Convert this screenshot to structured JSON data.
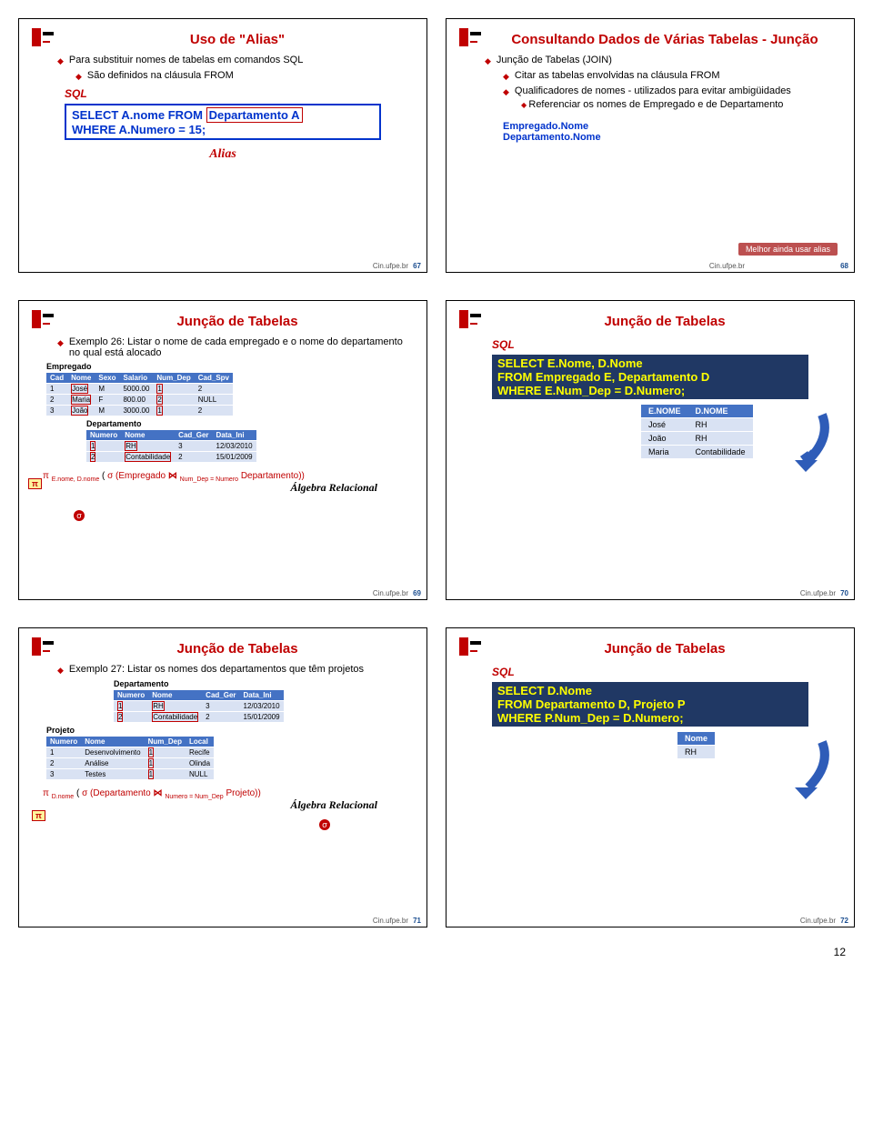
{
  "page_number": "12",
  "brand": "Cin.ufpe.br",
  "slides": {
    "s1": {
      "num": "67",
      "title": "Uso de \"Alias\"",
      "b1": "Para substituir nomes de tabelas em comandos SQL",
      "b2": "São definidos na cláusula FROM",
      "sql_label": "SQL",
      "code_l1_a": "SELECT A.nome FROM ",
      "code_l1_b": "Departamento A",
      "code_l2": "WHERE A.Numero = 15;",
      "alias_label": "Alias"
    },
    "s2": {
      "num": "68",
      "title": "Consultando Dados de Várias Tabelas - Junção",
      "b1": "Junção  de Tabelas (JOIN)",
      "b2": "Citar as tabelas envolvidas na cláusula FROM",
      "b3": "Qualificadores de nomes - utilizados para evitar ambigüidades",
      "b4": "Referenciar os nomes de Empregado e de Departamento",
      "eg1": "Empregado.Nome",
      "eg2": "Departamento.Nome",
      "note": "Melhor ainda usar alias"
    },
    "s3": {
      "num": "69",
      "title": "Junção  de Tabelas",
      "desc": "Exemplo 26: Listar o nome de cada empregado e o nome do departamento no qual está alocado",
      "emp_title": "Empregado",
      "emp_cols": [
        "Cad",
        "Nome",
        "Sexo",
        "Salario",
        "Num_Dep",
        "Cad_Spv"
      ],
      "emp_rows": [
        [
          "1",
          "José",
          "M",
          "5000.00",
          "1",
          "2"
        ],
        [
          "2",
          "Maria",
          "F",
          "800.00",
          "2",
          "NULL"
        ],
        [
          "3",
          "João",
          "M",
          "3000.00",
          "1",
          "2"
        ]
      ],
      "dep_title": "Departamento",
      "dep_cols": [
        "Numero",
        "Nome",
        "Cad_Ger",
        "Data_Ini"
      ],
      "dep_rows": [
        [
          "1",
          "RH",
          "3",
          "12/03/2010"
        ],
        [
          "2",
          "Contabilidade",
          "2",
          "15/01/2009"
        ]
      ],
      "alg_pi": "π",
      "alg_sub1": "E.nome, D.nome",
      "alg_sigma": "σ (Empregado",
      "alg_join": "⋈",
      "alg_cond": "Num_Dep = Numero",
      "alg_end": "Departamento))",
      "alg_label": "Álgebra Relacional"
    },
    "s4": {
      "num": "70",
      "title": "Junção  de Tabelas",
      "sql_label": "SQL",
      "code_l1": "SELECT E.Nome, D.Nome",
      "code_l2": " FROM Empregado E, Departamento D",
      "code_l3": "WHERE E.Num_Dep = D.Numero;",
      "res_cols": [
        "E.NOME",
        "D.NOME"
      ],
      "res_rows": [
        [
          "José",
          "RH"
        ],
        [
          "João",
          "RH"
        ],
        [
          "Maria",
          "Contabilidade"
        ]
      ]
    },
    "s5": {
      "num": "71",
      "title": "Junção  de Tabelas",
      "desc": "Exemplo 27: Listar os nomes dos departamentos que têm projetos",
      "dep_title": "Departamento",
      "dep_cols": [
        "Numero",
        "Nome",
        "Cad_Ger",
        "Data_Ini"
      ],
      "dep_rows": [
        [
          "1",
          "RH",
          "3",
          "12/03/2010"
        ],
        [
          "2",
          "Contabilidade",
          "2",
          "15/01/2009"
        ]
      ],
      "proj_title": "Projeto",
      "proj_cols": [
        "Numero",
        "Nome",
        "Num_Dep",
        "Local"
      ],
      "proj_rows": [
        [
          "1",
          "Desenvolvimento",
          "1",
          "Recife"
        ],
        [
          "2",
          "Análise",
          "1",
          "Olinda"
        ],
        [
          "3",
          "Testes",
          "1",
          "NULL"
        ]
      ],
      "alg_pi": "π",
      "alg_sub1": "D.nome",
      "alg_sigma": "σ (Departamento",
      "alg_join": "⋈",
      "alg_cond": "Numero = Num_Dep",
      "alg_end": "Projeto))",
      "alg_label": "Álgebra Relacional"
    },
    "s6": {
      "num": "72",
      "title": "Junção  de Tabelas",
      "sql_label": "SQL",
      "code_l1": "SELECT  D.Nome",
      "code_l2": "FROM  Departamento D, Projeto P",
      "code_l3": "WHERE P.Num_Dep = D.Numero;",
      "res_cols": [
        "Nome"
      ],
      "res_rows": [
        [
          "RH"
        ]
      ]
    }
  }
}
